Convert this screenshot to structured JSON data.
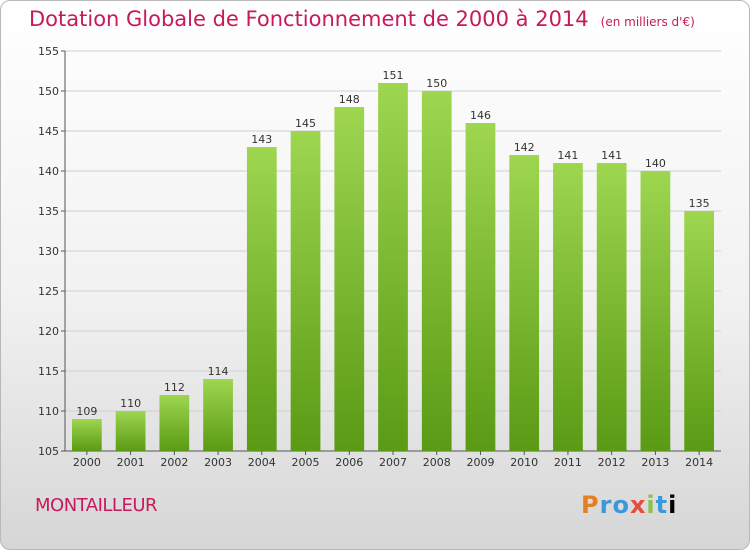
{
  "header": {
    "title": "Dotation Globale de Fonctionnement de 2000 à 2014",
    "unit": "(en milliers d'€)"
  },
  "footer": {
    "commune": "MONTAILLEUR",
    "logo": "Proxiti"
  },
  "colors": {
    "title": "#c8195a",
    "bar_top": "#9ed650",
    "bar_bottom": "#5a9a14",
    "grid": "#d0d0d0"
  },
  "chart_data": {
    "type": "bar",
    "title": "Dotation Globale de Fonctionnement de 2000 à 2014",
    "subtitle": "(en milliers d'€)",
    "xlabel": "",
    "ylabel": "",
    "categories": [
      "2000",
      "2001",
      "2002",
      "2003",
      "2004",
      "2005",
      "2006",
      "2007",
      "2008",
      "2009",
      "2010",
      "2011",
      "2012",
      "2013",
      "2014"
    ],
    "values": [
      109,
      110,
      112,
      114,
      143,
      145,
      148,
      151,
      150,
      146,
      142,
      141,
      141,
      140,
      135
    ],
    "ylim": [
      105,
      155
    ],
    "yticks": [
      105,
      110,
      115,
      120,
      125,
      130,
      135,
      140,
      145,
      150,
      155
    ],
    "grid": true,
    "legend": "none"
  }
}
